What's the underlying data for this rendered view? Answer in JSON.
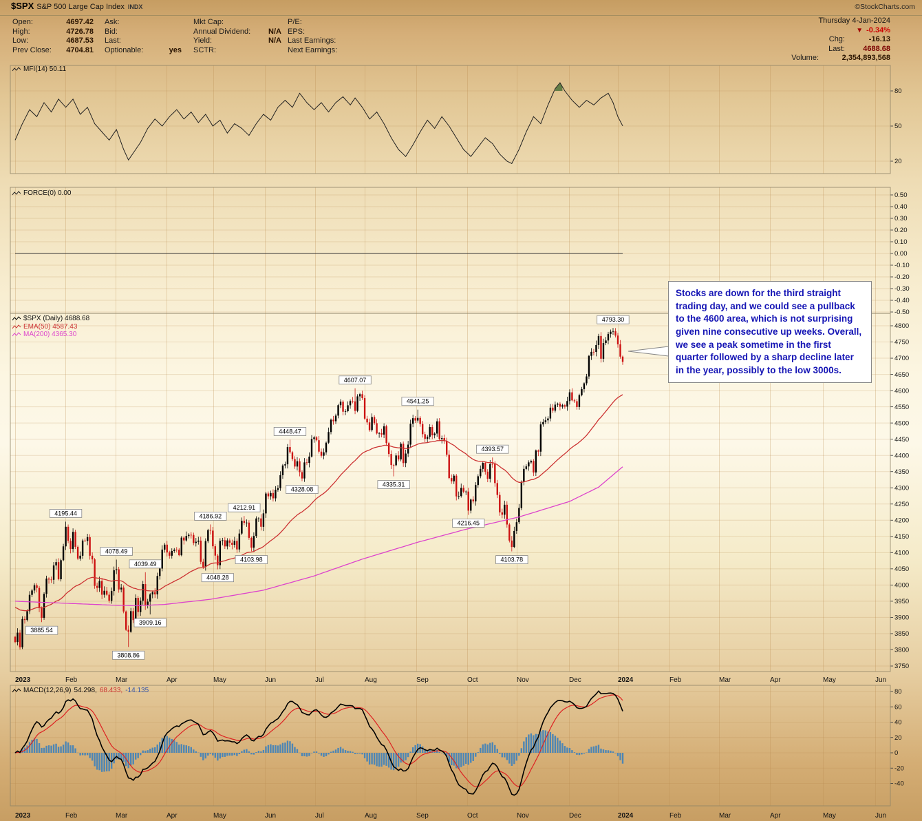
{
  "header": {
    "symbol": "$SPX",
    "name": "S&P 500 Large Cap Index",
    "type": "INDX",
    "copyright": "©StockCharts.com"
  },
  "quote": {
    "date": "Thursday 4-Jan-2024",
    "down_icon": "▼",
    "col1": [
      {
        "label": "Open:",
        "value": "4697.42"
      },
      {
        "label": "High:",
        "value": "4726.78"
      },
      {
        "label": "Low:",
        "value": "4687.53"
      },
      {
        "label": "Prev Close:",
        "value": "4704.81"
      }
    ],
    "col2": [
      {
        "label": "Ask:",
        "value": ""
      },
      {
        "label": "Bid:",
        "value": ""
      },
      {
        "label": "Last:",
        "value": ""
      },
      {
        "label": "Optionable:",
        "value": "yes"
      }
    ],
    "col3": [
      {
        "label": "Mkt Cap:",
        "value": ""
      },
      {
        "label": "Annual Dividend:",
        "value": "N/A"
      },
      {
        "label": "Yield:",
        "value": "N/A"
      },
      {
        "label": "SCTR:",
        "value": ""
      }
    ],
    "col4": [
      {
        "label": "P/E:",
        "value": ""
      },
      {
        "label": "EPS:",
        "value": ""
      },
      {
        "label": "Last Earnings:",
        "value": ""
      },
      {
        "label": "Next Earnings:",
        "value": ""
      }
    ],
    "change_pct": "-0.34%",
    "chg_label": "Chg:",
    "chg": "-16.13",
    "last_label": "Last:",
    "last": "4688.68",
    "volume_label": "Volume:",
    "volume": "2,354,893,568"
  },
  "annotation": {
    "text": "Stocks are down for the third straight trading day, and we could see a pullback to the 4600 area, which is not surprising given nine consecutive up weeks. Overall, we see a peak sometime in the first quarter followed by a sharp decline later in the year, possibly to the low 3000s."
  },
  "colors": {
    "up": "#000000",
    "down": "#cc1111",
    "ema50": "#cc3333",
    "ma200": "#dd44cc",
    "mfi_line": "#222222",
    "mfi_fill": "#5d7a42",
    "macd_line": "#000000",
    "macd_signal": "#dd2222",
    "macd_hist": "#4e86b4",
    "annotation": "#1515b5",
    "negative": "#cc0000",
    "grid": "#b98a4e",
    "frame": "#8f8468"
  },
  "chart_data": {
    "type": "candlestick",
    "symbol": "$SPX",
    "timeframe": "Daily",
    "x_axis": {
      "months": [
        "2023",
        "Feb",
        "Mar",
        "Apr",
        "May",
        "Jun",
        "Jul",
        "Aug",
        "Sep",
        "Oct",
        "Nov",
        "Dec",
        "2024",
        "Feb",
        "Mar",
        "Apr",
        "May",
        "Jun"
      ]
    },
    "panels": {
      "mfi": {
        "label": "MFI(14) 50.11",
        "ticks": [
          80,
          50,
          20
        ],
        "range": [
          0,
          100
        ],
        "anchors": [
          [
            0,
            38
          ],
          [
            3,
            52
          ],
          [
            6,
            64
          ],
          [
            9,
            58
          ],
          [
            12,
            70
          ],
          [
            15,
            62
          ],
          [
            18,
            73
          ],
          [
            21,
            66
          ],
          [
            24,
            73
          ],
          [
            27,
            60
          ],
          [
            30,
            66
          ],
          [
            33,
            52
          ],
          [
            36,
            45
          ],
          [
            39,
            38
          ],
          [
            42,
            47
          ],
          [
            45,
            30
          ],
          [
            47,
            21
          ],
          [
            49,
            27
          ],
          [
            52,
            36
          ],
          [
            55,
            48
          ],
          [
            58,
            56
          ],
          [
            61,
            50
          ],
          [
            64,
            58
          ],
          [
            67,
            64
          ],
          [
            70,
            56
          ],
          [
            73,
            62
          ],
          [
            76,
            53
          ],
          [
            79,
            60
          ],
          [
            82,
            50
          ],
          [
            85,
            55
          ],
          [
            88,
            44
          ],
          [
            91,
            52
          ],
          [
            94,
            48
          ],
          [
            97,
            42
          ],
          [
            100,
            52
          ],
          [
            103,
            60
          ],
          [
            106,
            55
          ],
          [
            109,
            66
          ],
          [
            112,
            72
          ],
          [
            115,
            66
          ],
          [
            118,
            78
          ],
          [
            121,
            70
          ],
          [
            124,
            64
          ],
          [
            127,
            70
          ],
          [
            130,
            62
          ],
          [
            133,
            70
          ],
          [
            136,
            75
          ],
          [
            139,
            68
          ],
          [
            141,
            74
          ],
          [
            144,
            66
          ],
          [
            147,
            56
          ],
          [
            150,
            62
          ],
          [
            153,
            52
          ],
          [
            156,
            40
          ],
          [
            159,
            30
          ],
          [
            162,
            24
          ],
          [
            165,
            34
          ],
          [
            168,
            45
          ],
          [
            171,
            55
          ],
          [
            174,
            48
          ],
          [
            177,
            58
          ],
          [
            180,
            50
          ],
          [
            183,
            40
          ],
          [
            186,
            30
          ],
          [
            189,
            24
          ],
          [
            192,
            32
          ],
          [
            195,
            40
          ],
          [
            198,
            35
          ],
          [
            201,
            26
          ],
          [
            204,
            20
          ],
          [
            206,
            18
          ],
          [
            209,
            30
          ],
          [
            212,
            45
          ],
          [
            215,
            58
          ],
          [
            218,
            52
          ],
          [
            221,
            68
          ],
          [
            224,
            82
          ],
          [
            226,
            87
          ],
          [
            228,
            80
          ],
          [
            231,
            72
          ],
          [
            234,
            66
          ],
          [
            237,
            72
          ],
          [
            240,
            68
          ],
          [
            243,
            74
          ],
          [
            246,
            78
          ],
          [
            248,
            70
          ],
          [
            250,
            58
          ],
          [
            252,
            50.11
          ]
        ]
      },
      "force": {
        "label": "FORCE(0) 0.00",
        "value": 0,
        "ticks": [
          "0.50",
          "0.40",
          "0.30",
          "0.20",
          "0.10",
          "0.00",
          "-0.10",
          "-0.20",
          "-0.30",
          "-0.40",
          "-0.50"
        ]
      },
      "price": {
        "legend_spx": "$SPX (Daily) 4688.68",
        "legend_ema": "EMA(50) 4587.43",
        "legend_ma": "MA(200) 4365.30",
        "ylim": [
          3750,
          4800
        ],
        "step": 50,
        "closes": [
          3824.14,
          3852.97,
          3808.1,
          3895.08,
          3892.09,
          3919.25,
          3969.61,
          3983.17,
          3999.09,
          3990.97,
          3928.86,
          3898.85,
          3972.61,
          4019.81,
          4016.95,
          4016.22,
          4060.43,
          4070.56,
          4017.77,
          4076.6,
          4119.21,
          4179.76,
          4136.48,
          4111.08,
          4164.0,
          4117.86,
          4081.5,
          4090.46,
          4137.29,
          4136.13,
          4147.6,
          4090.41,
          4079.09,
          3997.34,
          3991.05,
          4012.32,
          3970.04,
          3982.24,
          3970.15,
          3951.39,
          3981.35,
          4045.64,
          4048.42,
          3986.37,
          3992.01,
          3918.32,
          3861.59,
          3855.76,
          3919.29,
          3891.93,
          3960.28,
          3916.64,
          3951.57,
          4002.87,
          3936.97,
          3948.72,
          3970.99,
          3977.53,
          3971.27,
          4027.81,
          4050.83,
          4109.31,
          4124.51,
          4100.6,
          4090.38,
          4105.02,
          4109.11,
          4108.94,
          4091.95,
          4146.22,
          4137.64,
          4151.32,
          4154.87,
          4154.52,
          4129.79,
          4133.52,
          4137.04,
          4071.63,
          4055.99,
          4135.35,
          4169.48,
          4167.87,
          4119.58,
          4090.75,
          4061.22,
          4136.25,
          4138.12,
          4119.17,
          4137.64,
          4130.62,
          4124.08,
          4136.28,
          4109.9,
          4158.77,
          4198.05,
          4191.98,
          4192.63,
          4145.58,
          4115.24,
          4151.28,
          4205.45,
          4205.52,
          4179.83,
          4221.02,
          4282.37,
          4273.79,
          4283.85,
          4267.52,
          4293.93,
          4298.86,
          4338.93,
          4369.01,
          4372.59,
          4425.84,
          4409.59,
          4388.71,
          4365.69,
          4381.89,
          4348.33,
          4328.82,
          4378.41,
          4376.86,
          4396.44,
          4450.38,
          4455.59,
          4446.82,
          4411.59,
          4398.95,
          4409.53,
          4439.26,
          4472.16,
          4510.04,
          4505.42,
          4522.79,
          4554.98,
          4565.72,
          4534.87,
          4536.34,
          4554.64,
          4567.46,
          4566.75,
          4537.41,
          4582.23,
          4588.96,
          4576.73,
          4513.39,
          4501.89,
          4478.03,
          4518.44,
          4499.38,
          4467.71,
          4468.83,
          4464.05,
          4489.72,
          4437.86,
          4404.33,
          4370.36,
          4369.71,
          4399.77,
          4387.55,
          4436.01,
          4376.31,
          4405.71,
          4433.31,
          4497.63,
          4514.87,
          4507.66,
          4515.77,
          4496.83,
          4465.48,
          4451.14,
          4457.49,
          4487.46,
          4461.9,
          4467.44,
          4505.1,
          4450.32,
          4453.53,
          4443.95,
          4402.2,
          4330.0,
          4320.06,
          4337.44,
          4273.53,
          4274.51,
          4299.7,
          4288.05,
          4288.39,
          4229.45,
          4263.75,
          4258.19,
          4308.5,
          4335.66,
          4358.24,
          4376.95,
          4349.61,
          4327.78,
          4373.63,
          4373.2,
          4314.6,
          4278.0,
          4224.16,
          4217.04,
          4247.68,
          4186.77,
          4137.23,
          4117.37,
          4166.82,
          4193.8,
          4237.86,
          4317.78,
          4358.34,
          4365.98,
          4378.38,
          4382.78,
          4347.35,
          4415.24,
          4411.55,
          4495.7,
          4502.88,
          4508.24,
          4514.02,
          4547.38,
          4538.19,
          4556.62,
          4559.34,
          4550.43,
          4554.89,
          4550.58,
          4567.8,
          4594.63,
          4569.78,
          4567.18,
          4549.34,
          4585.59,
          4604.37,
          4622.44,
          4643.7,
          4707.09,
          4719.55,
          4719.19,
          4740.56,
          4768.37,
          4698.35,
          4746.75,
          4754.63,
          4774.75,
          4781.58,
          4783.35,
          4769.83,
          4742.83,
          4704.81,
          4688.68
        ],
        "ma200_anchors": [
          [
            0,
            3950
          ],
          [
            20,
            3944
          ],
          [
            40,
            3938
          ],
          [
            50,
            3936
          ],
          [
            62,
            3940
          ],
          [
            81,
            3956
          ],
          [
            103,
            3984
          ],
          [
            124,
            4028
          ],
          [
            144,
            4080
          ],
          [
            167,
            4132
          ],
          [
            187,
            4172
          ],
          [
            209,
            4210
          ],
          [
            230,
            4258
          ],
          [
            242,
            4302
          ],
          [
            252,
            4365
          ]
        ],
        "ema50_seed": 3935,
        "labels": [
          {
            "text": "3885.54",
            "day": 11,
            "price": 3885.54,
            "side": "below"
          },
          {
            "text": "4195.44",
            "day": 21,
            "price": 4195.44,
            "side": "above"
          },
          {
            "text": "4078.49",
            "day": 42,
            "price": 4078.49,
            "side": "above"
          },
          {
            "text": "3808.86",
            "day": 47,
            "price": 3808.86,
            "side": "below"
          },
          {
            "text": "4039.49",
            "day": 54,
            "price": 4039.49,
            "side": "above"
          },
          {
            "text": "3909.16",
            "day": 56,
            "price": 3909.16,
            "side": "below"
          },
          {
            "text": "4186.92",
            "day": 81,
            "price": 4186.92,
            "side": "above"
          },
          {
            "text": "4048.28",
            "day": 84,
            "price": 4048.28,
            "side": "below"
          },
          {
            "text": "4212.91",
            "day": 95,
            "price": 4212.91,
            "side": "above"
          },
          {
            "text": "4103.98",
            "day": 98,
            "price": 4103.98,
            "side": "below"
          },
          {
            "text": "4448.47",
            "day": 114,
            "price": 4448.47,
            "side": "above"
          },
          {
            "text": "4328.08",
            "day": 119,
            "price": 4328.08,
            "side": "below"
          },
          {
            "text": "4607.07",
            "day": 141,
            "price": 4607.07,
            "side": "above"
          },
          {
            "text": "4335.31",
            "day": 157,
            "price": 4335.31,
            "side": "below"
          },
          {
            "text": "4541.25",
            "day": 167,
            "price": 4541.25,
            "side": "above"
          },
          {
            "text": "4216.45",
            "day": 188,
            "price": 4216.45,
            "side": "below"
          },
          {
            "text": "4393.57",
            "day": 198,
            "price": 4393.57,
            "side": "above"
          },
          {
            "text": "4103.78",
            "day": 206,
            "price": 4103.78,
            "side": "below"
          },
          {
            "text": "4793.30",
            "day": 248,
            "price": 4793.3,
            "side": "above"
          }
        ]
      },
      "macd": {
        "label": "MACD(12,26,9)",
        "v1": "54.298,",
        "v2": "68.433,",
        "v3": "-14.135",
        "params": [
          12,
          26,
          9
        ],
        "ticks": [
          80,
          60,
          40,
          20,
          0,
          -20,
          -40
        ]
      }
    }
  }
}
